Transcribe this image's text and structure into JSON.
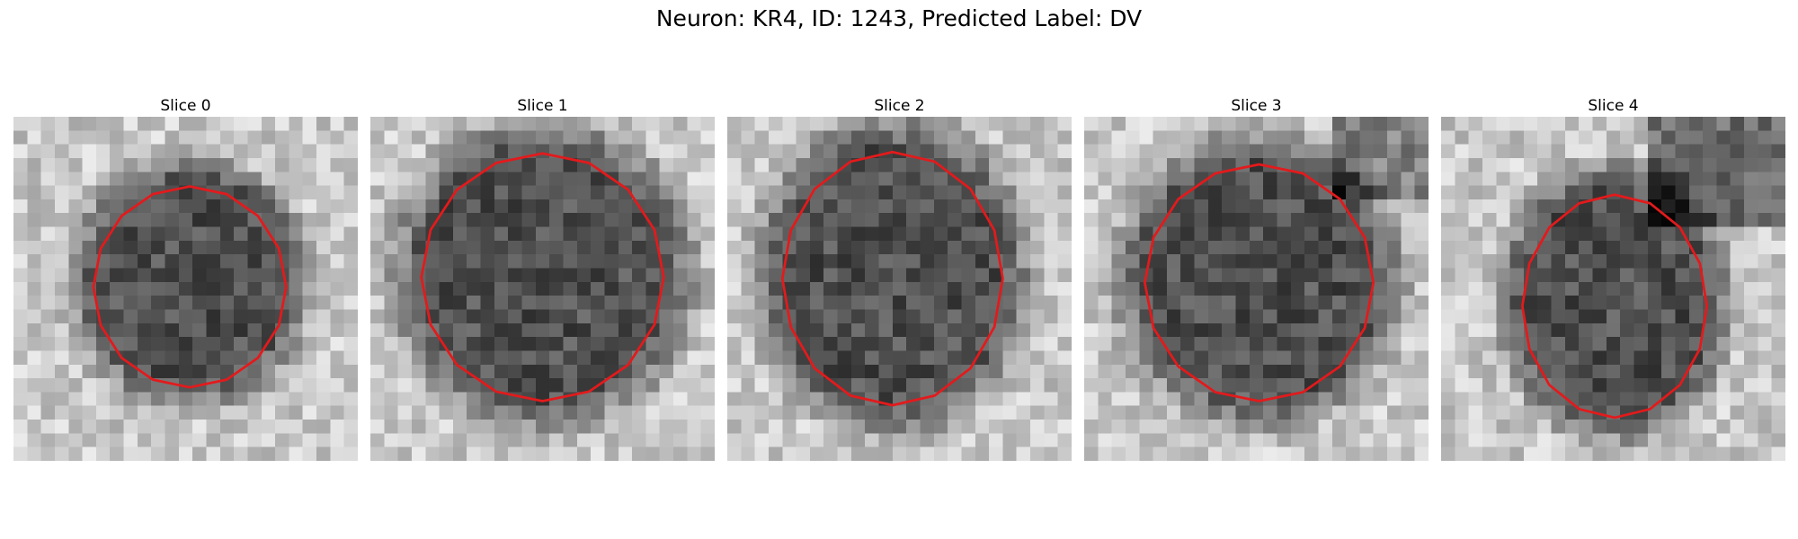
{
  "figure": {
    "title": "Neuron: KR4, ID: 1243, Predicted Label: DV",
    "colormap": "grayscale",
    "outline_color": "#e31a1c"
  },
  "panels": [
    {
      "label": "Slice 0",
      "centroid": [
        12.8,
        12.1
      ],
      "radii": [
        7.0,
        7.3
      ]
    },
    {
      "label": "Slice 1",
      "centroid": [
        12.5,
        11.4
      ],
      "radii": [
        8.8,
        9.0
      ]
    },
    {
      "label": "Slice 2",
      "centroid": [
        12.0,
        11.5
      ],
      "radii": [
        8.0,
        9.2
      ]
    },
    {
      "label": "Slice 3",
      "centroid": [
        12.7,
        11.8
      ],
      "radii": [
        8.3,
        8.6
      ]
    },
    {
      "label": "Slice 4",
      "centroid": [
        12.6,
        13.5
      ],
      "radii": [
        6.7,
        8.1
      ]
    }
  ]
}
